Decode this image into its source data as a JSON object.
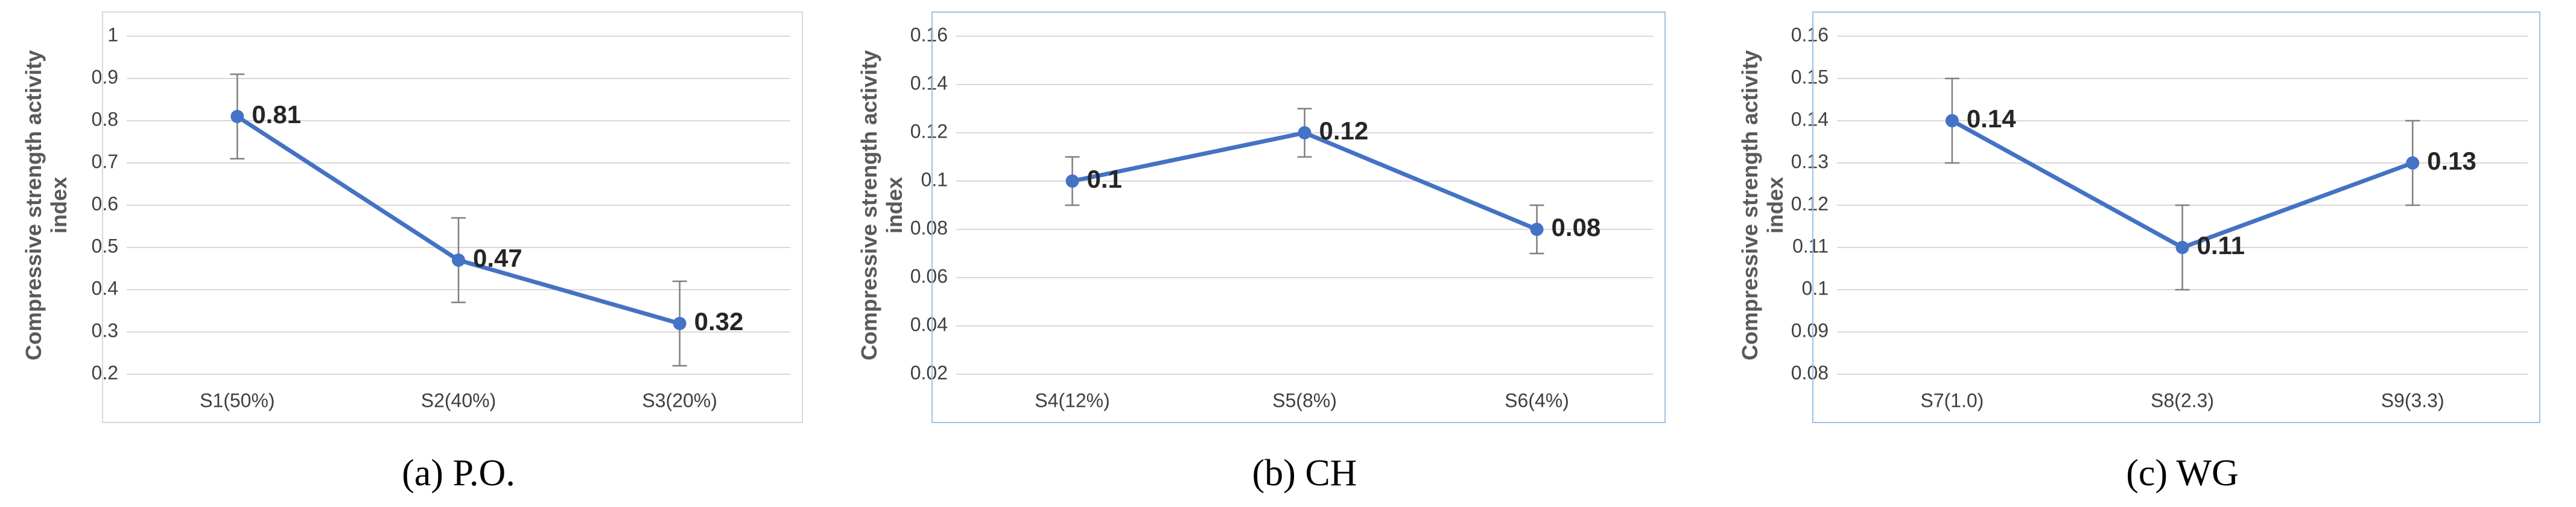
{
  "chart_data": [
    {
      "type": "line",
      "caption": "(a) P.O.",
      "ylabel": [
        "Compressive strength activity",
        "index"
      ],
      "categories": [
        "S1(50%)",
        "S2(40%)",
        "S3(20%)"
      ],
      "values": [
        0.81,
        0.47,
        0.32
      ],
      "errors": [
        0.1,
        0.1,
        0.1
      ],
      "color": "#4472c4",
      "ylim": [
        0.2,
        1
      ],
      "yticks": [
        0.2,
        0.3,
        0.4,
        0.5,
        0.6,
        0.7,
        0.8,
        0.9,
        1
      ],
      "grid": true
    },
    {
      "type": "line",
      "caption": "(b) CH",
      "ylabel": [
        "Compressive strength activity",
        "index"
      ],
      "categories": [
        "S4(12%)",
        "S5(8%)",
        "S6(4%)"
      ],
      "values": [
        0.1,
        0.12,
        0.08
      ],
      "errors": [
        0.01,
        0.01,
        0.01
      ],
      "color": "#4472c4",
      "ylim": [
        0.02,
        0.16
      ],
      "yticks": [
        0.02,
        0.04,
        0.06,
        0.08,
        0.1,
        0.12,
        0.14,
        0.16
      ],
      "grid": true
    },
    {
      "type": "line",
      "caption": "(c) WG",
      "ylabel": [
        "Compressive strength activity",
        "index"
      ],
      "categories": [
        "S7(1.0)",
        "S8(2.3)",
        "S9(3.3)"
      ],
      "values": [
        0.14,
        0.11,
        0.13
      ],
      "errors": [
        0.01,
        0.01,
        0.01
      ],
      "color": "#4472c4",
      "ylim": [
        0.08,
        0.16
      ],
      "yticks": [
        0.08,
        0.09,
        0.1,
        0.11,
        0.12,
        0.13,
        0.14,
        0.15,
        0.16
      ],
      "grid": true
    }
  ]
}
